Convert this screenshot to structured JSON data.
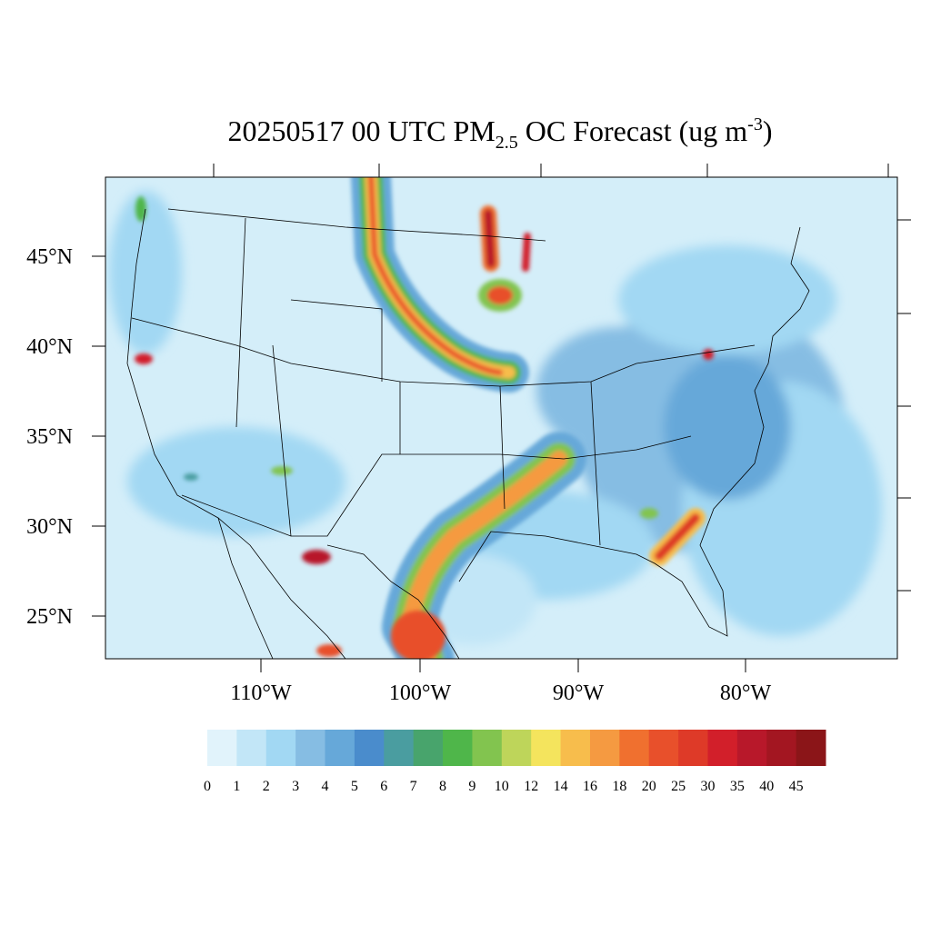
{
  "title": {
    "main": "20250517 00 UTC PM",
    "subscript": "2.5",
    "middle": " OC Forecast (ug m",
    "superscript": "-3",
    "end": ")"
  },
  "map": {
    "lat_labels": [
      "45°N",
      "40°N",
      "35°N",
      "30°N",
      "25°N"
    ],
    "lon_labels": [
      "110°W",
      "100°W",
      "90°W",
      "80°W"
    ]
  },
  "colorbar": {
    "labels": [
      0,
      1,
      2,
      3,
      4,
      5,
      6,
      7,
      8,
      9,
      10,
      12,
      14,
      16,
      18,
      20,
      25,
      30,
      35,
      40,
      45
    ],
    "colors": [
      "#e1f3fb",
      "#c2e6f7",
      "#a2d8f3",
      "#86bde3",
      "#66a8d9",
      "#4a8ccc",
      "#4a9da0",
      "#48a46c",
      "#4fb64a",
      "#82c44f",
      "#bed55a",
      "#f4e45d",
      "#f7bd4c",
      "#f59a41",
      "#f0702f",
      "#e8502b",
      "#de3a28",
      "#d21f2a",
      "#b8182a",
      "#a31621",
      "#8b1518"
    ]
  }
}
